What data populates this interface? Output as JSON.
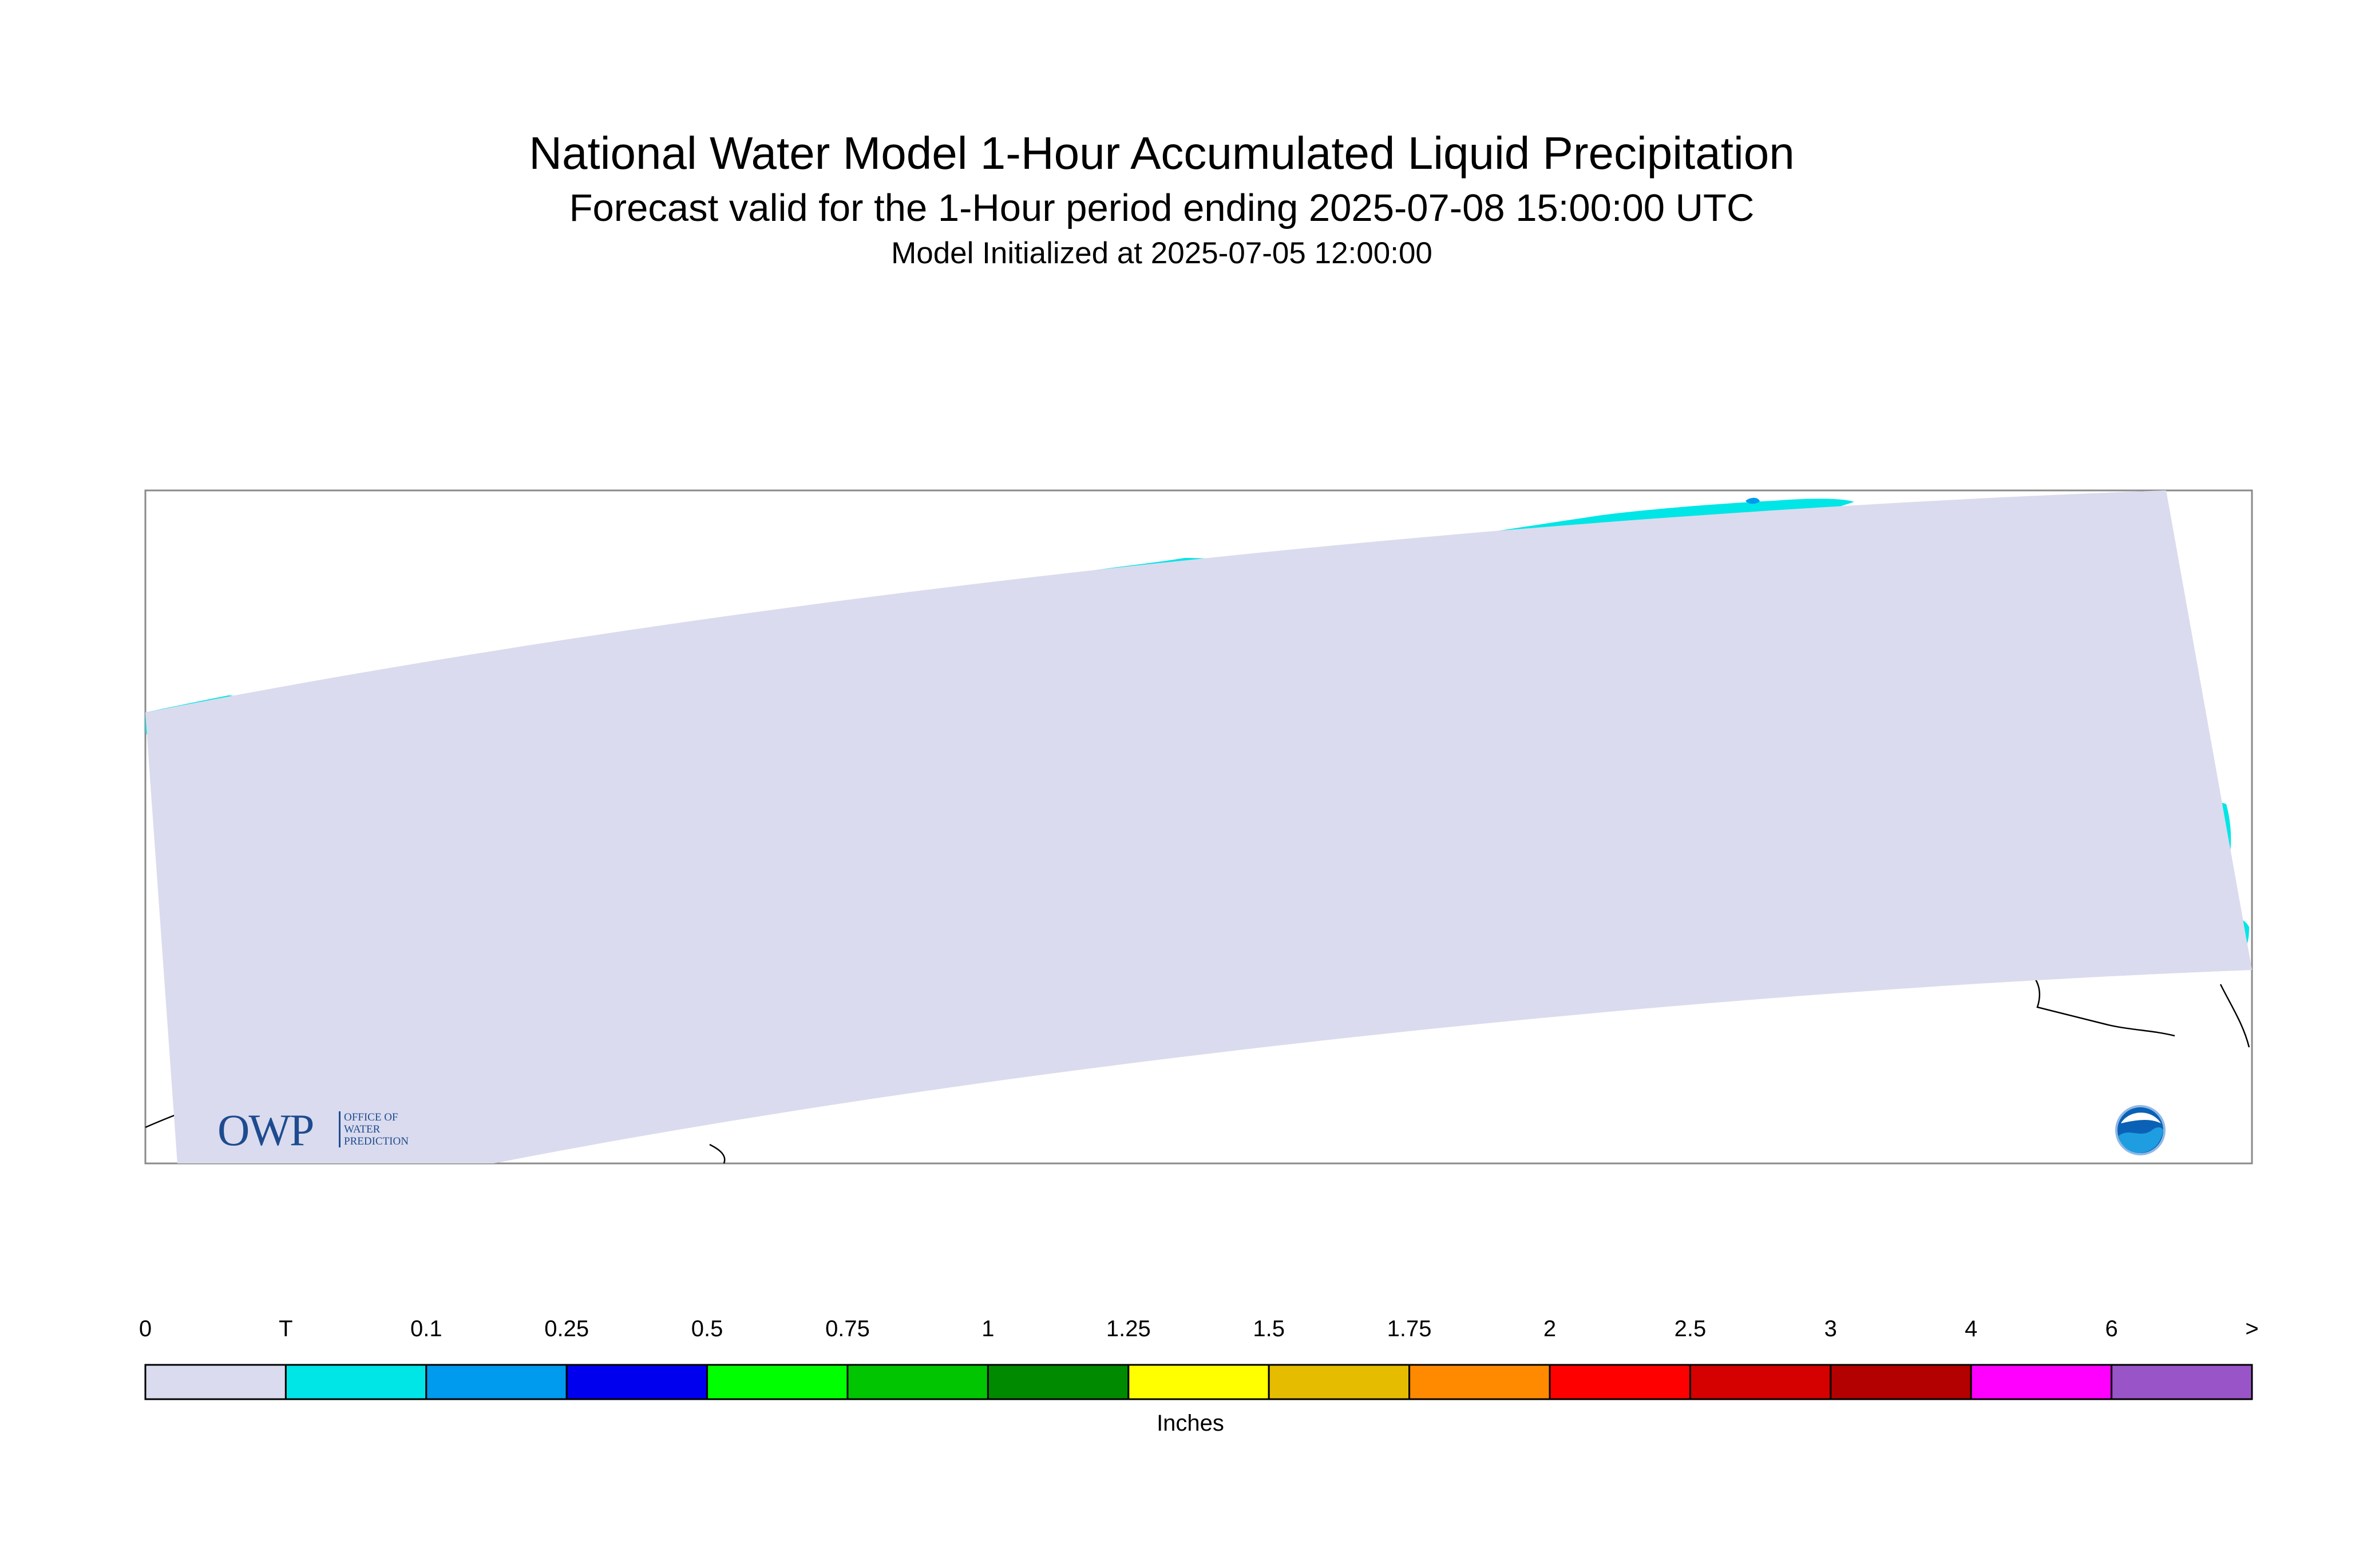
{
  "header": {
    "title": "National Water Model 1-Hour Accumulated Liquid Precipitation",
    "subtitle": "Forecast valid for the 1-Hour period ending 2025-07-08 15:00:00 UTC",
    "init": "Model Initialized at 2025-07-05 12:00:00"
  },
  "colorbar": {
    "unit": "Inches",
    "ticks": [
      "0",
      "T",
      "0.1",
      "0.25",
      "0.5",
      "0.75",
      "1",
      "1.25",
      "1.5",
      "1.75",
      "2",
      "2.5",
      "3",
      "4",
      "6",
      ">"
    ],
    "colors": [
      "#dadbee",
      "#00e5e6",
      "#009aee",
      "#0000ee",
      "#00ff00",
      "#00c500",
      "#008a00",
      "#ffff00",
      "#e6bc00",
      "#ff8a00",
      "#ff0000",
      "#d50000",
      "#b30000",
      "#ff00ff",
      "#9955c8"
    ]
  },
  "map": {
    "background_color": "#dadbee",
    "precip_trace_color": "#00e5e6",
    "precip_light_color": "#009aee",
    "coastline_color": "#000000"
  },
  "logos": {
    "owp_big": "OWP",
    "owp_lines": [
      "OFFICE OF",
      "WATER",
      "PREDICTION"
    ],
    "noaa": "NOAA",
    "owp_icon": "owp-logo-icon",
    "noaa_icon": "noaa-logo-icon"
  }
}
